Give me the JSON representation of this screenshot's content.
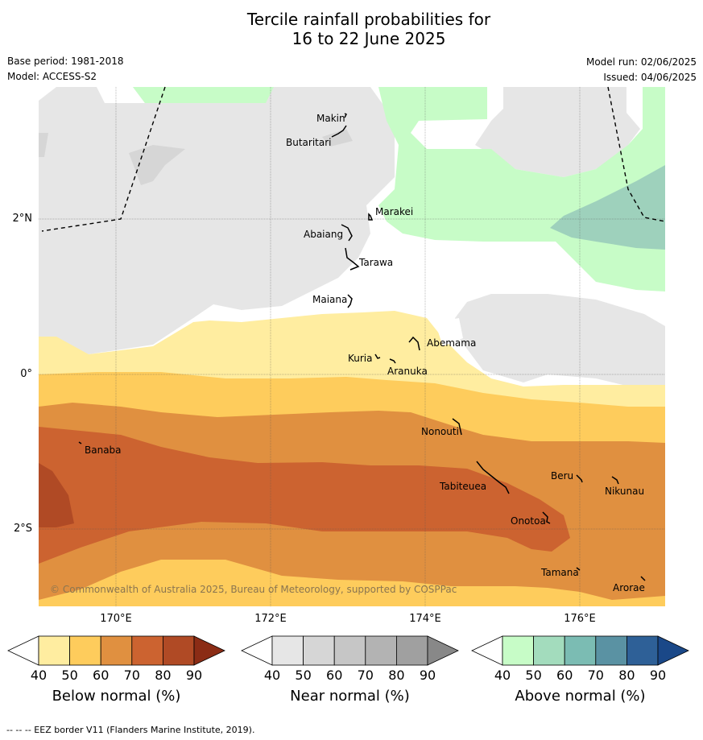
{
  "title": {
    "line1": "Tercile rainfall probabilities for",
    "line2": "16 to 22 June 2025"
  },
  "meta": {
    "base_period": "Base period: 1981-2018",
    "model": "Model: ACCESS-S2",
    "model_run": "Model run: 02/06/2025",
    "issued": "Issued: 04/06/2025"
  },
  "map": {
    "longitude_ticks": [
      "170°E",
      "172°E",
      "174°E",
      "176°E"
    ],
    "latitude_ticks": [
      "2°N",
      "0°",
      "2°S"
    ],
    "copyright": "© Commonwealth of Australia 2025, Bureau of Meteorology, supported by COSPPac",
    "islands": [
      "Makin",
      "Butaritari",
      "Marakei",
      "Abaiang",
      "Tarawa",
      "Maiana",
      "Abemama",
      "Kuria",
      "Aranuka",
      "Nonouti",
      "Banaba",
      "Beru",
      "Nikunau",
      "Tabiteuea",
      "Onotoa",
      "Tamana",
      "Arorae"
    ]
  },
  "colorbars": [
    {
      "label": "Below normal (%)",
      "ticks": [
        "40",
        "50",
        "60",
        "70",
        "80",
        "90"
      ],
      "colors": [
        "#ffffff",
        "#ffeda0",
        "#fecc5c",
        "#e09040",
        "#cc6330",
        "#b04a25",
        "#8b2c15"
      ]
    },
    {
      "label": "Near normal (%)",
      "ticks": [
        "40",
        "50",
        "60",
        "70",
        "80",
        "90"
      ],
      "colors": [
        "#ffffff",
        "#e6e6e6",
        "#d6d6d6",
        "#c6c6c6",
        "#b3b3b3",
        "#a0a0a0",
        "#888888"
      ]
    },
    {
      "label": "Above normal (%)",
      "ticks": [
        "40",
        "50",
        "60",
        "70",
        "80",
        "90"
      ],
      "colors": [
        "#ffffff",
        "#c7fcc7",
        "#a3dcbd",
        "#7bbcb3",
        "#5a92a3",
        "#2e6097",
        "#1a4888"
      ]
    }
  ],
  "footer": "--  --  -- EEZ border V11 (Flanders Marine Institute, 2019)."
}
